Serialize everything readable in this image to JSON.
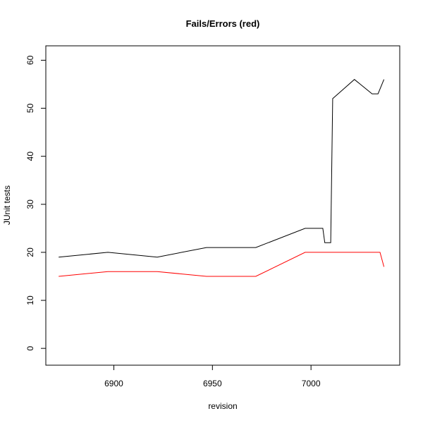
{
  "chart_data": {
    "type": "line",
    "title": "Fails/Errors (red)",
    "xlabel": "revision",
    "ylabel": "JUnit tests",
    "xlim": [
      6870,
      6840
    ],
    "x_domain": [
      6868,
      6040
    ],
    "ylim": [
      -3.5,
      63
    ],
    "xticks": [
      6900,
      6950,
      7000
    ],
    "yticks": [
      0,
      10,
      20,
      30,
      40,
      50,
      60
    ],
    "grid": false,
    "legend": "none",
    "series": [
      {
        "color": "#000000",
        "points": [
          [
            6872,
            19
          ],
          [
            6897,
            20
          ],
          [
            6922,
            19
          ],
          [
            6947,
            21
          ],
          [
            6972,
            21
          ],
          [
            6997,
            25
          ],
          [
            7006,
            25
          ],
          [
            7007,
            22
          ],
          [
            7010,
            22
          ],
          [
            7011,
            52
          ],
          [
            7022,
            56
          ],
          [
            7031,
            53
          ],
          [
            7034,
            53
          ],
          [
            7037,
            56
          ]
        ]
      },
      {
        "color": "#ff0000",
        "points": [
          [
            6872,
            15
          ],
          [
            6897,
            16
          ],
          [
            6922,
            16
          ],
          [
            6947,
            15
          ],
          [
            6972,
            15
          ],
          [
            6997,
            20
          ],
          [
            7035,
            20
          ],
          [
            7037,
            17
          ]
        ]
      }
    ]
  }
}
